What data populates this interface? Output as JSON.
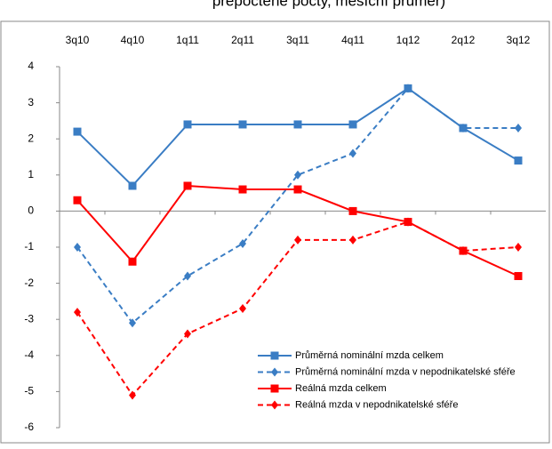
{
  "chart_data": {
    "type": "line",
    "title": "přepočtené počty, měsíční průměr)",
    "categories": [
      "3q10",
      "4q10",
      "1q11",
      "2q11",
      "3q11",
      "4q11",
      "1q12",
      "2q12",
      "3q12"
    ],
    "ylim": [
      -6,
      4
    ],
    "yticks": [
      -6,
      -5,
      -4,
      -3,
      -2,
      -1,
      0,
      1,
      2,
      3,
      4
    ],
    "grid": false,
    "legend": "lower right",
    "series": [
      {
        "name": "Průměrná nominální  mzda celkem",
        "color": "#3a7dc4",
        "line_style": "solid",
        "marker": "square",
        "values": [
          2.2,
          0.7,
          2.4,
          2.4,
          2.4,
          2.4,
          3.4,
          2.3,
          1.4
        ]
      },
      {
        "name": "Průměrná nominální  mzda v nepodnikatelské  sféře",
        "color": "#3a7dc4",
        "line_style": "dashed",
        "marker": "diamond",
        "values": [
          -1.0,
          -3.1,
          -1.8,
          -0.9,
          1.0,
          1.6,
          3.4,
          2.3,
          2.3
        ]
      },
      {
        "name": "Reálná mzda celkem",
        "color": "#ff0000",
        "line_style": "solid",
        "marker": "square",
        "values": [
          0.3,
          -1.4,
          0.7,
          0.6,
          0.6,
          0.0,
          -0.3,
          -1.1,
          -1.8
        ]
      },
      {
        "name": "Reálná mzda v nepodnikatelské  sféře",
        "color": "#ff0000",
        "line_style": "dashed",
        "marker": "diamond",
        "values": [
          -2.8,
          -5.1,
          -3.4,
          -2.7,
          -0.8,
          -0.8,
          -0.3,
          -1.1,
          -1.0
        ]
      }
    ]
  }
}
